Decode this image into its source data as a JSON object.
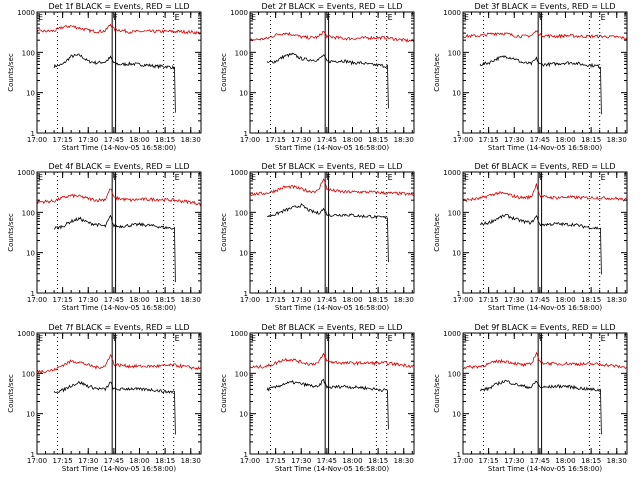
{
  "colors": {
    "events": "#000000",
    "lld": "#dd0000",
    "axes": "#000000",
    "marker_lines": "#000000"
  },
  "layout_hint": {
    "grid": "3x3"
  },
  "shared": {
    "ylabel": "Counts/sec",
    "xlabel": "Start Time (14-Nov-05 16:58:00)",
    "x_tick_labels": [
      "17:00",
      "17:15",
      "17:30",
      "17:45",
      "18:00",
      "18:15",
      "18:30"
    ],
    "y_tick_labels": [
      "1",
      "10",
      "100",
      "1000"
    ],
    "event_markers": [
      {
        "label": "E",
        "time": "17:00",
        "style": "dotted"
      },
      {
        "label": "",
        "time": "17:12",
        "style": "dotted"
      },
      {
        "label": "F",
        "time": "17:44",
        "style": "solid"
      },
      {
        "label": "",
        "time": "17:46",
        "style": "solid"
      },
      {
        "label": "",
        "time": "18:14",
        "style": "dotted"
      },
      {
        "label": "E",
        "time": "18:20",
        "style": "dotted"
      }
    ]
  },
  "chart_data": [
    {
      "type": "line",
      "title": "Det 1f BLACK = Events, RED = LLD",
      "xlabel": "Start Time (14-Nov-05 16:58:00)",
      "ylabel": "Counts/sec",
      "yscale": "log",
      "ylim": [
        1,
        1000
      ],
      "xlim": [
        "17:00",
        "18:36"
      ],
      "series": [
        {
          "name": "Events",
          "color": "black",
          "x": [
            "17:10",
            "17:15",
            "17:20",
            "17:25",
            "17:30",
            "17:35",
            "17:40",
            "17:43",
            "17:45",
            "17:48",
            "17:55",
            "18:00",
            "18:05",
            "18:10",
            "18:15",
            "18:20",
            "18:21"
          ],
          "values": [
            45,
            50,
            80,
            85,
            60,
            55,
            58,
            75,
            55,
            50,
            52,
            50,
            48,
            45,
            45,
            42,
            3
          ]
        },
        {
          "name": "LLD",
          "color": "red",
          "x": [
            "17:00",
            "17:10",
            "17:15",
            "17:20",
            "17:25",
            "17:30",
            "17:35",
            "17:40",
            "17:43",
            "17:45",
            "17:48",
            "17:55",
            "18:00",
            "18:10",
            "18:20",
            "18:30",
            "18:36"
          ],
          "values": [
            330,
            340,
            420,
            450,
            400,
            350,
            330,
            340,
            500,
            380,
            360,
            320,
            330,
            330,
            330,
            320,
            300
          ]
        }
      ]
    },
    {
      "type": "line",
      "title": "Det 2f BLACK = Events, RED = LLD",
      "xlabel": "Start Time (14-Nov-05 16:58:00)",
      "ylabel": "Counts/sec",
      "yscale": "log",
      "ylim": [
        1,
        1000
      ],
      "xlim": [
        "17:00",
        "18:36"
      ],
      "series": [
        {
          "name": "Events",
          "color": "black",
          "x": [
            "17:10",
            "17:15",
            "17:20",
            "17:25",
            "17:30",
            "17:35",
            "17:40",
            "17:43",
            "17:45",
            "17:48",
            "17:55",
            "18:00",
            "18:05",
            "18:10",
            "18:15",
            "18:20",
            "18:21"
          ],
          "values": [
            55,
            60,
            80,
            90,
            70,
            65,
            65,
            85,
            60,
            60,
            62,
            55,
            55,
            50,
            48,
            45,
            4
          ]
        },
        {
          "name": "LLD",
          "color": "red",
          "x": [
            "17:00",
            "17:10",
            "17:15",
            "17:20",
            "17:25",
            "17:30",
            "17:35",
            "17:40",
            "17:43",
            "17:45",
            "17:48",
            "17:55",
            "18:00",
            "18:10",
            "18:20",
            "18:30",
            "18:36"
          ],
          "values": [
            200,
            220,
            270,
            300,
            280,
            240,
            230,
            240,
            330,
            250,
            240,
            220,
            220,
            230,
            230,
            200,
            190
          ]
        }
      ]
    },
    {
      "type": "line",
      "title": "Det 3f BLACK = Events, RED = LLD",
      "xlabel": "Start Time (14-Nov-05 16:58:00)",
      "ylabel": "Counts/sec",
      "yscale": "log",
      "ylim": [
        1,
        1000
      ],
      "xlim": [
        "17:00",
        "18:36"
      ],
      "series": [
        {
          "name": "Events",
          "color": "black",
          "x": [
            "17:10",
            "17:15",
            "17:20",
            "17:25",
            "17:30",
            "17:35",
            "17:40",
            "17:43",
            "17:45",
            "17:48",
            "17:55",
            "18:00",
            "18:05",
            "18:10",
            "18:15",
            "18:20",
            "18:21"
          ],
          "values": [
            50,
            55,
            70,
            80,
            70,
            55,
            52,
            70,
            50,
            50,
            52,
            55,
            55,
            50,
            48,
            45,
            3
          ]
        },
        {
          "name": "LLD",
          "color": "red",
          "x": [
            "17:00",
            "17:10",
            "17:15",
            "17:20",
            "17:25",
            "17:30",
            "17:35",
            "17:40",
            "17:43",
            "17:45",
            "17:48",
            "17:55",
            "18:00",
            "18:10",
            "18:20",
            "18:30",
            "18:36"
          ],
          "values": [
            250,
            260,
            280,
            300,
            290,
            260,
            250,
            260,
            340,
            270,
            260,
            250,
            260,
            250,
            250,
            240,
            220
          ]
        }
      ]
    },
    {
      "type": "line",
      "title": "Det 4f BLACK = Events, RED = LLD",
      "xlabel": "Start Time (14-Nov-05 16:58:00)",
      "ylabel": "Counts/sec",
      "yscale": "log",
      "ylim": [
        1,
        1000
      ],
      "xlim": [
        "17:00",
        "18:36"
      ],
      "series": [
        {
          "name": "Events",
          "color": "black",
          "x": [
            "17:10",
            "17:15",
            "17:20",
            "17:25",
            "17:30",
            "17:35",
            "17:40",
            "17:43",
            "17:45",
            "17:48",
            "17:55",
            "18:00",
            "18:05",
            "18:10",
            "18:15",
            "18:20",
            "18:21"
          ],
          "values": [
            40,
            45,
            60,
            70,
            55,
            50,
            45,
            80,
            45,
            45,
            48,
            50,
            48,
            45,
            42,
            40,
            2
          ]
        },
        {
          "name": "LLD",
          "color": "red",
          "x": [
            "17:00",
            "17:10",
            "17:15",
            "17:20",
            "17:25",
            "17:30",
            "17:35",
            "17:40",
            "17:43",
            "17:45",
            "17:48",
            "17:55",
            "18:00",
            "18:10",
            "18:20",
            "18:30",
            "18:36"
          ],
          "values": [
            180,
            190,
            230,
            260,
            250,
            220,
            200,
            210,
            400,
            230,
            220,
            200,
            210,
            210,
            200,
            180,
            160
          ]
        }
      ]
    },
    {
      "type": "line",
      "title": "Det 5f BLACK = Events, RED = LLD",
      "xlabel": "Start Time (14-Nov-05 16:58:00)",
      "ylabel": "Counts/sec",
      "yscale": "log",
      "ylim": [
        1,
        1000
      ],
      "xlim": [
        "17:00",
        "18:36"
      ],
      "series": [
        {
          "name": "Events",
          "color": "black",
          "x": [
            "17:10",
            "17:15",
            "17:20",
            "17:25",
            "17:30",
            "17:35",
            "17:40",
            "17:43",
            "17:45",
            "17:48",
            "17:55",
            "18:00",
            "18:05",
            "18:10",
            "18:15",
            "18:20",
            "18:21"
          ],
          "values": [
            80,
            90,
            110,
            130,
            150,
            110,
            95,
            120,
            90,
            85,
            88,
            85,
            80,
            80,
            75,
            75,
            6
          ]
        },
        {
          "name": "LLD",
          "color": "red",
          "x": [
            "17:00",
            "17:10",
            "17:15",
            "17:20",
            "17:25",
            "17:30",
            "17:35",
            "17:40",
            "17:43",
            "17:45",
            "17:48",
            "17:55",
            "18:00",
            "18:10",
            "18:20",
            "18:30",
            "18:36"
          ],
          "values": [
            280,
            300,
            350,
            420,
            430,
            380,
            330,
            340,
            700,
            380,
            350,
            320,
            320,
            320,
            300,
            290,
            270
          ]
        }
      ]
    },
    {
      "type": "line",
      "title": "Det 6f BLACK = Events, RED = LLD",
      "xlabel": "Start Time (14-Nov-05 16:58:00)",
      "ylabel": "Counts/sec",
      "yscale": "log",
      "ylim": [
        1,
        1000
      ],
      "xlim": [
        "17:00",
        "18:36"
      ],
      "series": [
        {
          "name": "Events",
          "color": "black",
          "x": [
            "17:10",
            "17:15",
            "17:20",
            "17:25",
            "17:30",
            "17:35",
            "17:40",
            "17:43",
            "17:45",
            "17:48",
            "17:55",
            "18:00",
            "18:05",
            "18:10",
            "18:15",
            "18:20",
            "18:21"
          ],
          "values": [
            50,
            55,
            70,
            85,
            70,
            60,
            55,
            80,
            50,
            50,
            52,
            50,
            50,
            45,
            42,
            40,
            3
          ]
        },
        {
          "name": "LLD",
          "color": "red",
          "x": [
            "17:00",
            "17:10",
            "17:15",
            "17:20",
            "17:25",
            "17:30",
            "17:35",
            "17:40",
            "17:43",
            "17:45",
            "17:48",
            "17:55",
            "18:00",
            "18:10",
            "18:20",
            "18:30",
            "18:36"
          ],
          "values": [
            200,
            220,
            260,
            300,
            290,
            250,
            230,
            240,
            500,
            260,
            240,
            230,
            240,
            230,
            230,
            220,
            200
          ]
        }
      ]
    },
    {
      "type": "line",
      "title": "Det 7f BLACK = Events, RED = LLD",
      "xlabel": "Start Time (14-Nov-05 16:58:00)",
      "ylabel": "Counts/sec",
      "yscale": "log",
      "ylim": [
        1,
        1000
      ],
      "xlim": [
        "17:00",
        "18:36"
      ],
      "series": [
        {
          "name": "Events",
          "color": "black",
          "x": [
            "17:10",
            "17:15",
            "17:20",
            "17:25",
            "17:30",
            "17:35",
            "17:40",
            "17:43",
            "17:45",
            "17:48",
            "17:55",
            "18:00",
            "18:05",
            "18:10",
            "18:15",
            "18:20",
            "18:21"
          ],
          "values": [
            35,
            38,
            50,
            60,
            48,
            42,
            40,
            60,
            40,
            40,
            42,
            40,
            40,
            38,
            35,
            35,
            3
          ]
        },
        {
          "name": "LLD",
          "color": "red",
          "x": [
            "17:00",
            "17:10",
            "17:15",
            "17:20",
            "17:25",
            "17:30",
            "17:35",
            "17:40",
            "17:43",
            "17:45",
            "17:48",
            "17:55",
            "18:00",
            "18:10",
            "18:20",
            "18:30",
            "18:36"
          ],
          "values": [
            110,
            120,
            160,
            200,
            190,
            160,
            140,
            150,
            300,
            170,
            160,
            150,
            150,
            150,
            160,
            140,
            130
          ]
        }
      ]
    },
    {
      "type": "line",
      "title": "Det 8f BLACK = Events, RED = LLD",
      "xlabel": "Start Time (14-Nov-05 16:58:00)",
      "ylabel": "Counts/sec",
      "yscale": "log",
      "ylim": [
        1,
        1000
      ],
      "xlim": [
        "17:00",
        "18:36"
      ],
      "series": [
        {
          "name": "Events",
          "color": "black",
          "x": [
            "17:10",
            "17:15",
            "17:20",
            "17:25",
            "17:30",
            "17:35",
            "17:40",
            "17:43",
            "17:45",
            "17:48",
            "17:55",
            "18:00",
            "18:05",
            "18:10",
            "18:15",
            "18:20",
            "18:21"
          ],
          "values": [
            40,
            45,
            55,
            60,
            55,
            50,
            45,
            70,
            45,
            45,
            48,
            45,
            45,
            42,
            40,
            38,
            4
          ]
        },
        {
          "name": "LLD",
          "color": "red",
          "x": [
            "17:00",
            "17:10",
            "17:15",
            "17:20",
            "17:25",
            "17:30",
            "17:35",
            "17:40",
            "17:43",
            "17:45",
            "17:48",
            "17:55",
            "18:00",
            "18:10",
            "18:20",
            "18:30",
            "18:36"
          ],
          "values": [
            140,
            150,
            180,
            220,
            220,
            190,
            170,
            180,
            300,
            200,
            190,
            180,
            180,
            180,
            180,
            160,
            150
          ]
        }
      ]
    },
    {
      "type": "line",
      "title": "Det 9f BLACK = Events, RED = LLD",
      "xlabel": "Start Time (14-Nov-05 16:58:00)",
      "ylabel": "Counts/sec",
      "yscale": "log",
      "ylim": [
        1,
        1000
      ],
      "xlim": [
        "17:00",
        "18:36"
      ],
      "series": [
        {
          "name": "Events",
          "color": "black",
          "x": [
            "17:10",
            "17:15",
            "17:20",
            "17:25",
            "17:30",
            "17:35",
            "17:40",
            "17:43",
            "17:45",
            "17:48",
            "17:55",
            "18:00",
            "18:05",
            "18:10",
            "18:15",
            "18:20",
            "18:21"
          ],
          "values": [
            38,
            42,
            55,
            65,
            55,
            48,
            45,
            65,
            45,
            45,
            48,
            48,
            45,
            42,
            40,
            38,
            3
          ]
        },
        {
          "name": "LLD",
          "color": "red",
          "x": [
            "17:00",
            "17:10",
            "17:15",
            "17:20",
            "17:25",
            "17:30",
            "17:35",
            "17:40",
            "17:43",
            "17:45",
            "17:48",
            "17:55",
            "18:00",
            "18:10",
            "18:20",
            "18:30",
            "18:36"
          ],
          "values": [
            140,
            150,
            170,
            200,
            200,
            180,
            160,
            170,
            330,
            190,
            180,
            170,
            175,
            170,
            170,
            150,
            140
          ]
        }
      ]
    }
  ]
}
